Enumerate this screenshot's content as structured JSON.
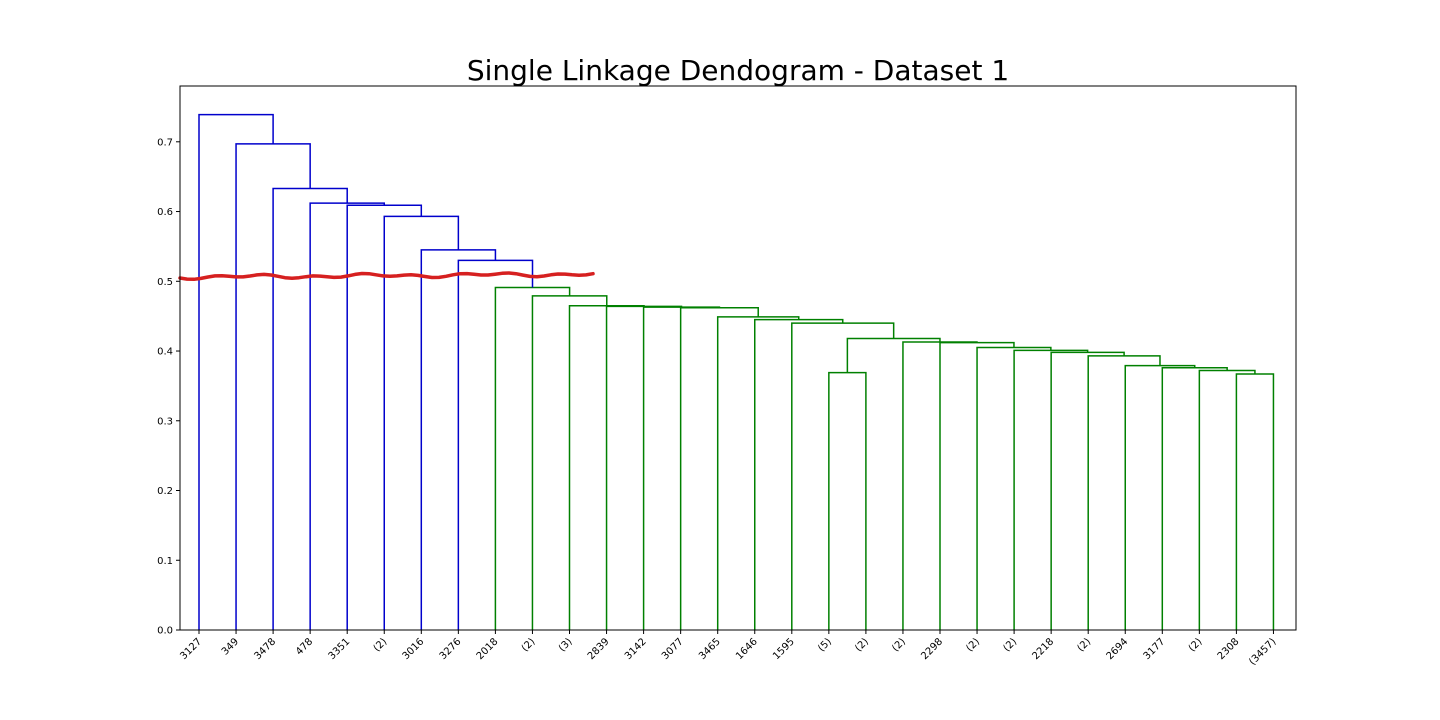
{
  "chart_data": {
    "type": "dendrogram",
    "title": "Single Linkage Dendogram - Dataset 1",
    "xlabel": "",
    "ylabel": "",
    "ylim": [
      0,
      0.78
    ],
    "yticks": [
      0.0,
      0.1,
      0.2,
      0.3,
      0.4,
      0.5,
      0.6,
      0.7
    ],
    "ytick_labels": [
      "0.0",
      "0.1",
      "0.2",
      "0.3",
      "0.4",
      "0.5",
      "0.6",
      "0.7"
    ],
    "grid": false,
    "leaves": [
      "3127",
      "349",
      "3478",
      "478",
      "3351",
      "(2)",
      "3016",
      "3276",
      "2018",
      "(2)",
      "(3)",
      "2839",
      "3142",
      "3077",
      "3465",
      "1646",
      "1595",
      "(5)",
      "(2)",
      "(2)",
      "2298",
      "(2)",
      "(2)",
      "2218",
      "(2)",
      "2694",
      "3177",
      "(2)",
      "2308",
      "(3457)"
    ],
    "colors": {
      "above_cut": "#0000cc",
      "below_cut": "#008000",
      "cut_line": "#d62020"
    },
    "cut_height": 0.506,
    "merges": [
      {
        "l": 28,
        "r": 29,
        "h": 0.367,
        "c": "g"
      },
      {
        "l": 17,
        "r": 18,
        "h": 0.369,
        "c": "g"
      },
      {
        "l": 27,
        "r": 30,
        "h": 0.372,
        "c": "g"
      },
      {
        "l": 26,
        "r": 32,
        "h": 0.376,
        "c": "g"
      },
      {
        "l": 25,
        "r": 33,
        "h": 0.379,
        "c": "g"
      },
      {
        "l": 24,
        "r": 34,
        "h": 0.393,
        "c": "g"
      },
      {
        "l": 23,
        "r": 35,
        "h": 0.398,
        "c": "g"
      },
      {
        "l": 22,
        "r": 36,
        "h": 0.401,
        "c": "g"
      },
      {
        "l": 21,
        "r": 37,
        "h": 0.405,
        "c": "g"
      },
      {
        "l": 20,
        "r": 38,
        "h": 0.412,
        "c": "g"
      },
      {
        "l": 19,
        "r": 39,
        "h": 0.413,
        "c": "g"
      },
      {
        "l": 31,
        "r": 40,
        "h": 0.418,
        "c": "g"
      },
      {
        "l": 16,
        "r": 41,
        "h": 0.44,
        "c": "g"
      },
      {
        "l": 15,
        "r": 42,
        "h": 0.445,
        "c": "g"
      },
      {
        "l": 14,
        "r": 43,
        "h": 0.449,
        "c": "g"
      },
      {
        "l": 13,
        "r": 44,
        "h": 0.462,
        "c": "g"
      },
      {
        "l": 12,
        "r": 45,
        "h": 0.463,
        "c": "g"
      },
      {
        "l": 11,
        "r": 46,
        "h": 0.464,
        "c": "g"
      },
      {
        "l": 10,
        "r": 47,
        "h": 0.465,
        "c": "g"
      },
      {
        "l": 9,
        "r": 48,
        "h": 0.479,
        "c": "g"
      },
      {
        "l": 8,
        "r": 49,
        "h": 0.491,
        "c": "g"
      },
      {
        "l": 7,
        "r": 50,
        "h": 0.53,
        "c": "b"
      },
      {
        "l": 6,
        "r": 51,
        "h": 0.545,
        "c": "b"
      },
      {
        "l": 5,
        "r": 52,
        "h": 0.593,
        "c": "b"
      },
      {
        "l": 4,
        "r": 53,
        "h": 0.609,
        "c": "b"
      },
      {
        "l": 3,
        "r": 54,
        "h": 0.612,
        "c": "b"
      },
      {
        "l": 2,
        "r": 55,
        "h": 0.633,
        "c": "b"
      },
      {
        "l": 1,
        "r": 56,
        "h": 0.697,
        "c": "b"
      },
      {
        "l": 0,
        "r": 57,
        "h": 0.739,
        "c": "b"
      }
    ]
  }
}
